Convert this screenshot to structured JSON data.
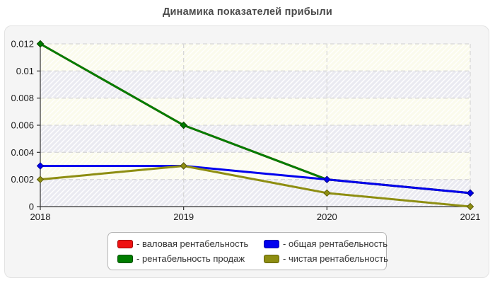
{
  "title": "Динамика показателей прибыли",
  "chart_data": {
    "type": "line",
    "x_categories": [
      "2018",
      "2019",
      "2020",
      "2021"
    ],
    "series": [
      {
        "name": "валовая рентабельность",
        "color": "#ee1111",
        "border": "#a00000",
        "values": [
          0.012,
          0.006,
          0.002,
          0.001
        ]
      },
      {
        "name": "рентабельность продаж",
        "color": "#007d00",
        "border": "#004d00",
        "values": [
          0.012,
          0.006,
          0.002,
          0.001
        ]
      },
      {
        "name": "общая рентабельность",
        "color": "#0000ee",
        "border": "#0000a0",
        "values": [
          0.003,
          0.003,
          0.002,
          0.001
        ]
      },
      {
        "name": "чистая рентабельность",
        "color": "#8e8e12",
        "border": "#60600a",
        "values": [
          0.002,
          0.003,
          0.001,
          0.0
        ]
      }
    ],
    "ylim": [
      0,
      0.012
    ],
    "yticks": [
      0,
      0.002,
      0.004,
      0.006,
      0.008,
      0.01,
      0.012
    ],
    "ytick_labels": [
      "0",
      "0.002",
      "0.004",
      "0.006",
      "0.008",
      "0.01",
      "0.012"
    ],
    "grid": "dashed",
    "band_colors": [
      "#fbfbec",
      "#eaeaf1"
    ],
    "hatch_color": "#ffffff",
    "axis_color": "#333333",
    "grid_color": "#d8d8d8",
    "legend_position": "bottom-center"
  },
  "legend": {
    "prefix": "-",
    "items": [
      {
        "label": "валовая рентабельность",
        "color": "#ee1111",
        "border": "#a00000"
      },
      {
        "label": "общая рентабельность",
        "color": "#0000ee",
        "border": "#0000a0"
      },
      {
        "label": "рентабельность продаж",
        "color": "#007d00",
        "border": "#004d00"
      },
      {
        "label": "чистая рентабельность",
        "color": "#8e8e12",
        "border": "#60600a"
      }
    ]
  }
}
